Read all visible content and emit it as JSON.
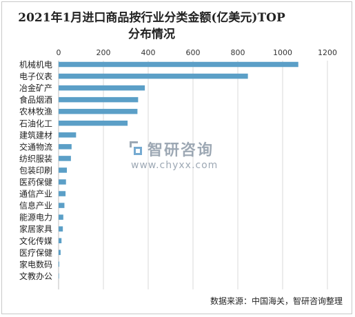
{
  "chart_data": {
    "type": "bar",
    "orientation": "horizontal",
    "title": "2021年1月进口商品按行业分类金额(亿美元)TOP分布情况",
    "categories": [
      "机械机电",
      "电子仪表",
      "冶金矿产",
      "食品烟酒",
      "农林牧渔",
      "石油化工",
      "建筑建材",
      "交通物流",
      "纺织服装",
      "包装印刷",
      "医药保健",
      "通信产业",
      "信息产业",
      "能源电力",
      "家居家具",
      "文化传媒",
      "医疗保健",
      "家电数码",
      "文教办公"
    ],
    "values": [
      1070,
      845,
      385,
      355,
      352,
      308,
      78,
      58,
      55,
      37,
      33,
      31,
      26,
      21,
      19,
      13,
      9,
      3,
      2
    ],
    "xlim": [
      0,
      1200
    ],
    "xticks": [
      0,
      200,
      400,
      600,
      800,
      1000,
      1200
    ],
    "grid": true,
    "bar_color": "#5b9fc7"
  },
  "watermark": {
    "text": "智研咨询",
    "url": "www.chyxx.com"
  },
  "source": "数据来源：中国海关，智研咨询整理"
}
